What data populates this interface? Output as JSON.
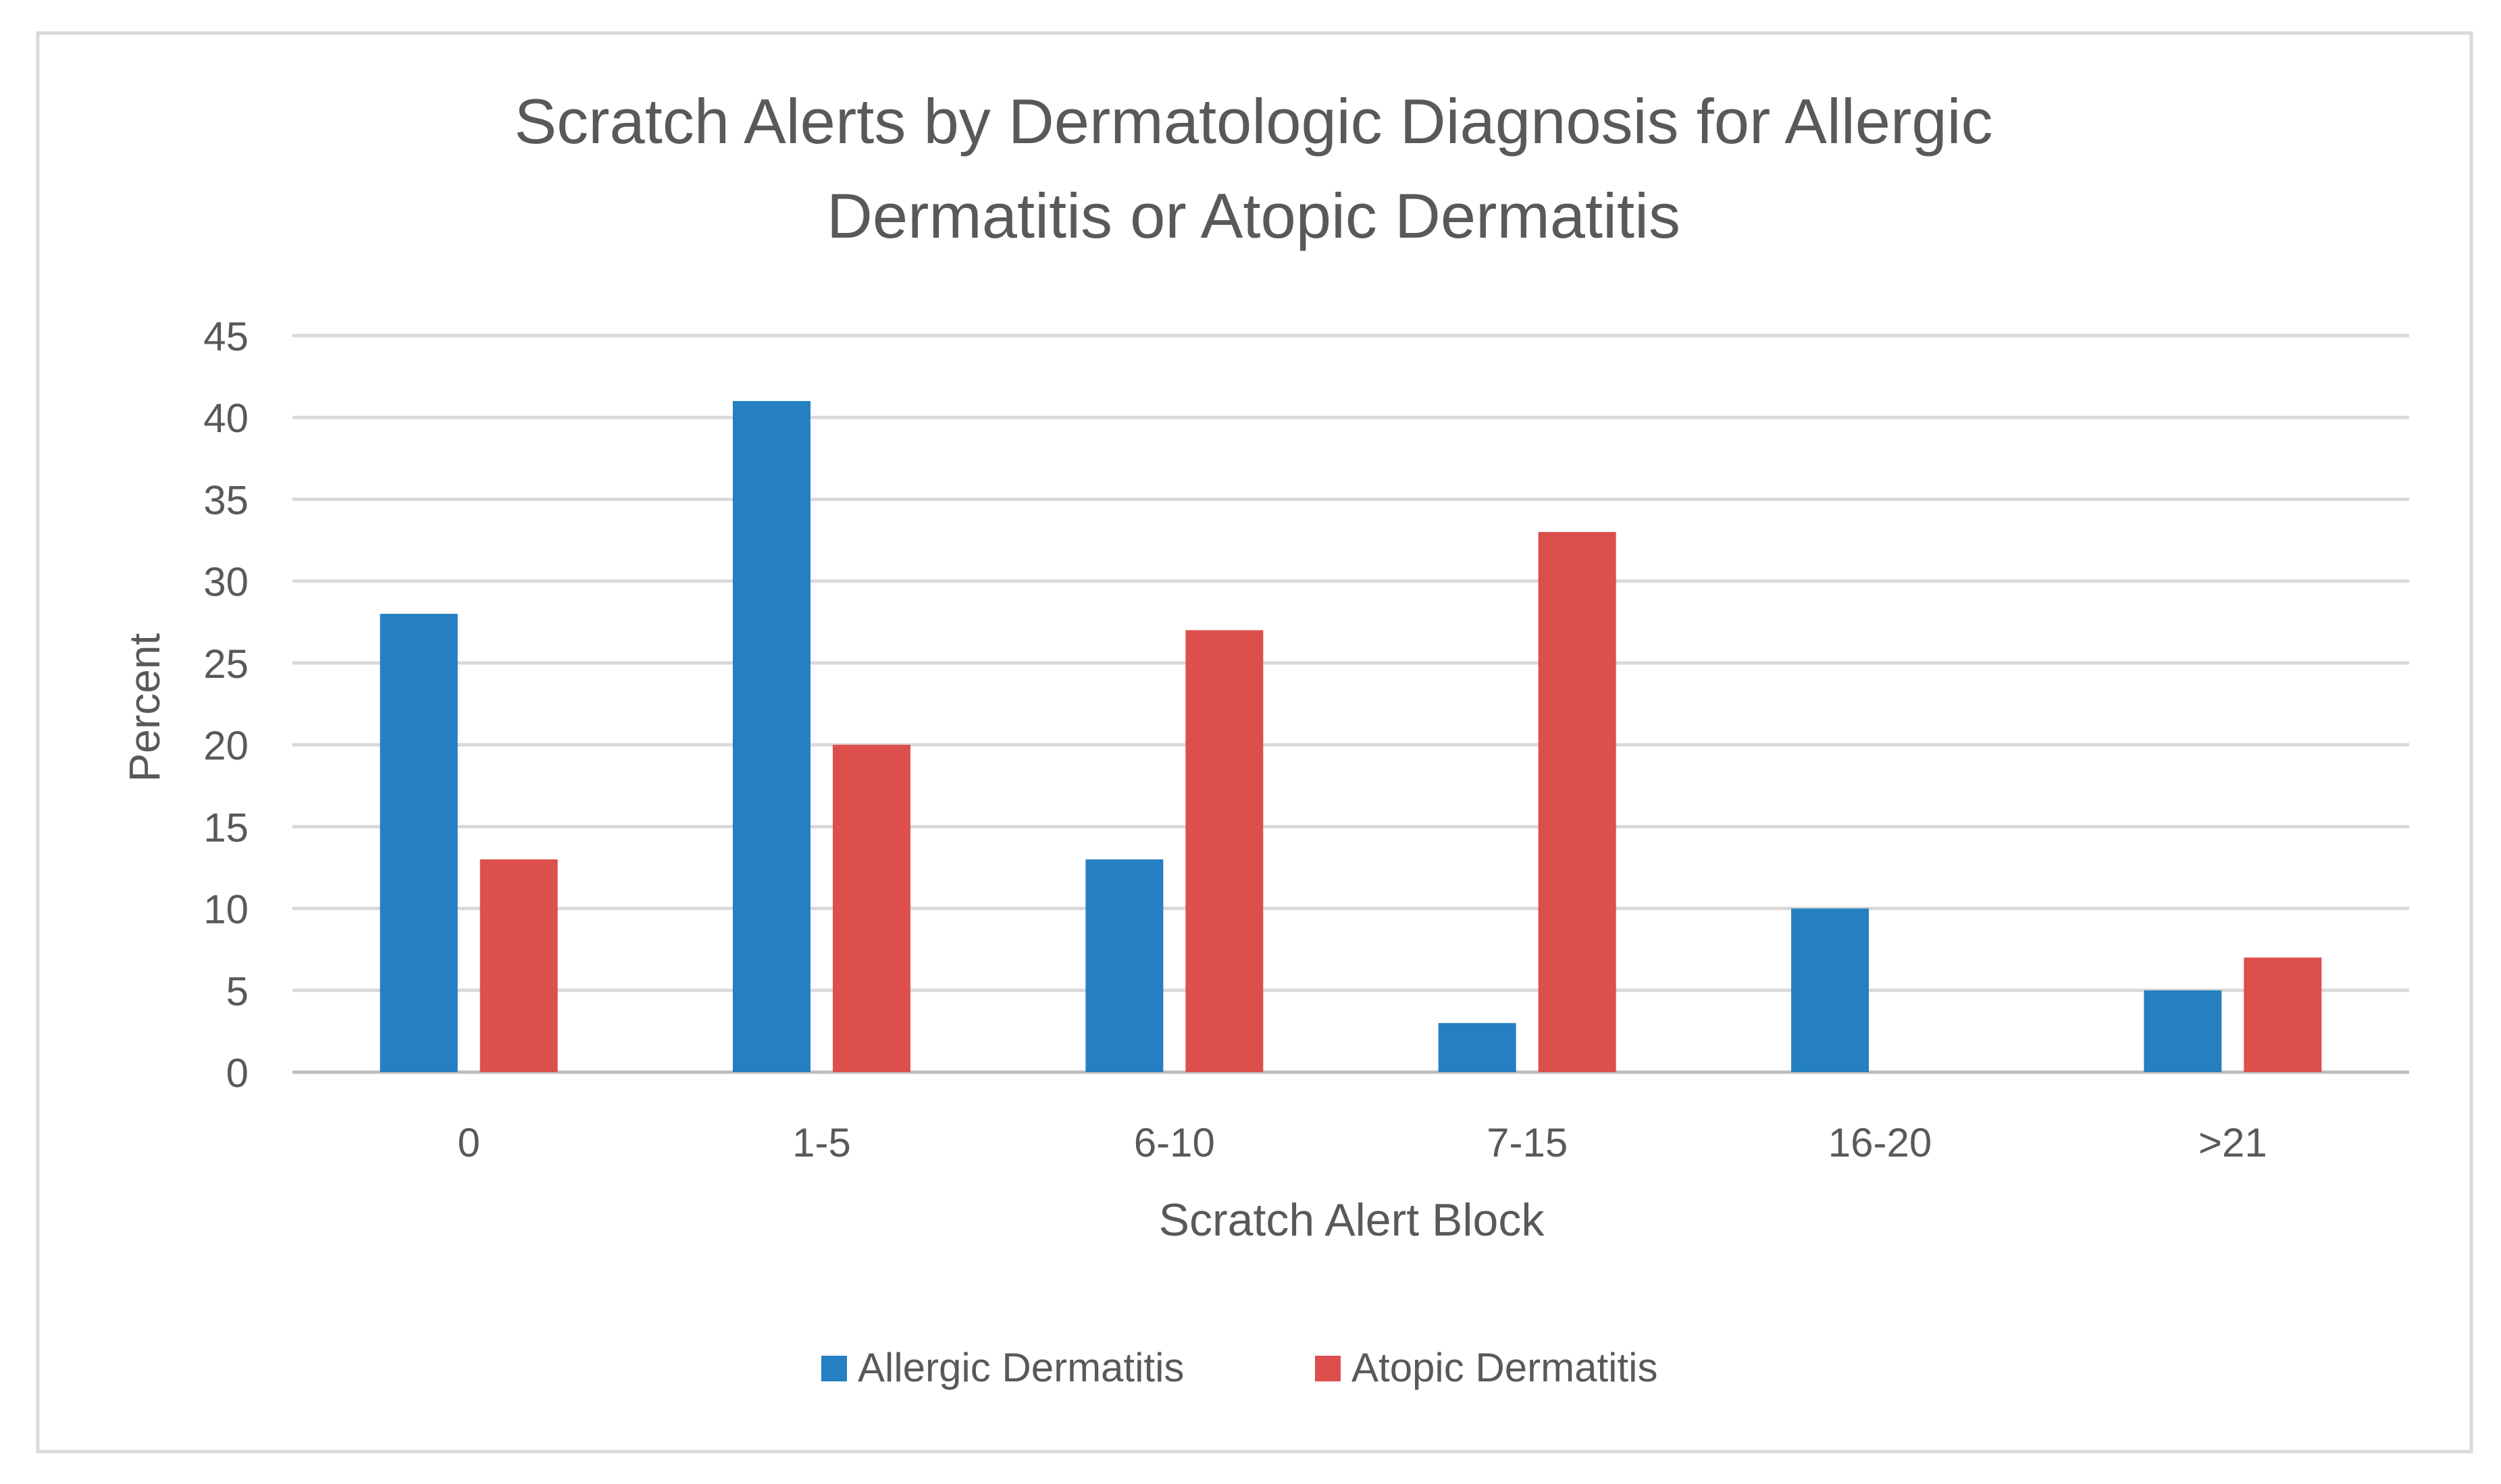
{
  "chart_data": {
    "type": "bar",
    "title": "Scratch Alerts by Dermatologic Diagnosis for Allergic Dermatitis or Atopic Dermatitis",
    "title_lines": [
      "Scratch Alerts by Dermatologic Diagnosis for Allergic",
      "Dermatitis or Atopic Dermatitis"
    ],
    "xlabel": "Scratch Alert Block",
    "ylabel": "Percent",
    "categories": [
      "0",
      "1-5",
      "6-10",
      "7-15",
      "16-20",
      ">21"
    ],
    "yticks": [
      "0",
      "5",
      "10",
      "15",
      "20",
      "25",
      "30",
      "35",
      "40",
      "45"
    ],
    "ylim": [
      0,
      45
    ],
    "grid": true,
    "legend_position": "bottom",
    "series": [
      {
        "name": "Allergic Dermatitis",
        "color": "#2480c1",
        "values": [
          28,
          41,
          13,
          3,
          10,
          5
        ]
      },
      {
        "name": "Atopic Dermatitis",
        "color": "#dc4f4c",
        "values": [
          13,
          20,
          27,
          33,
          0,
          7
        ]
      }
    ]
  }
}
